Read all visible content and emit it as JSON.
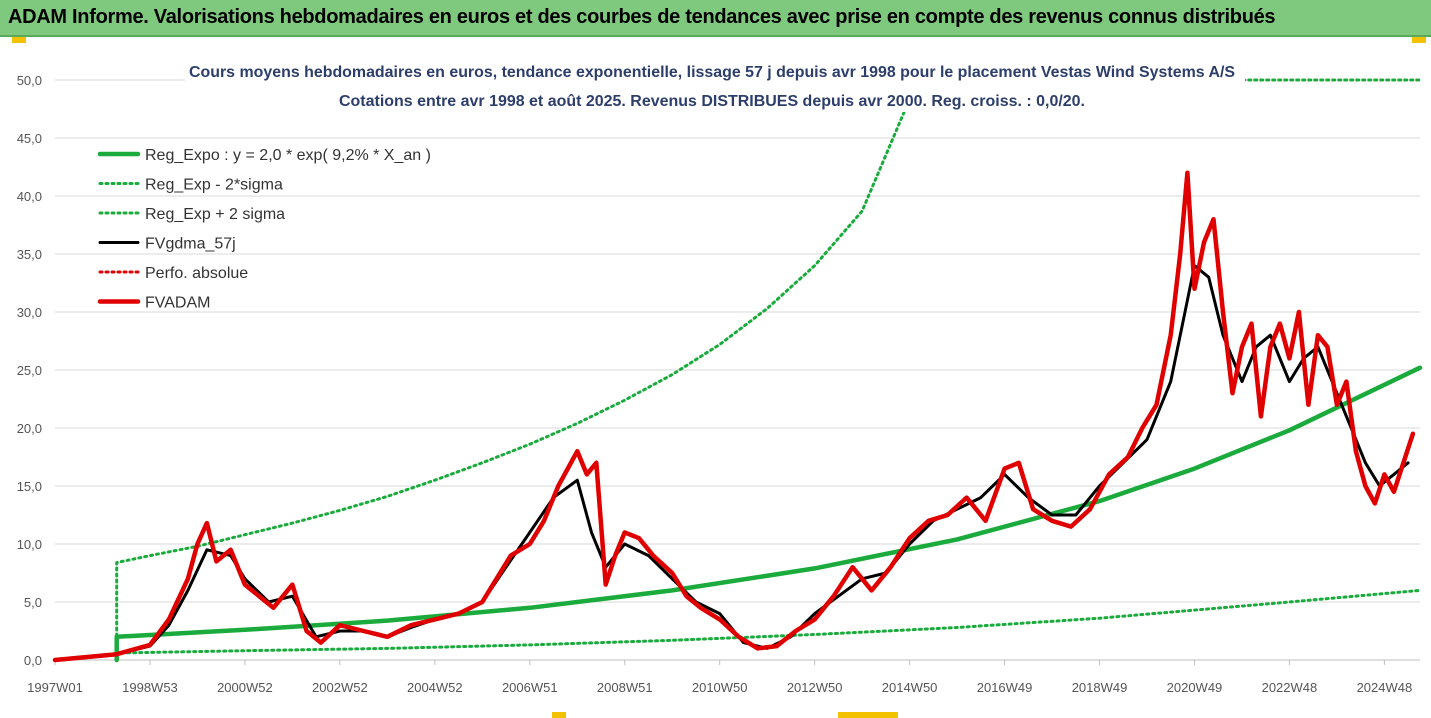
{
  "header": {
    "title": "ADAM Informe. Valorisations hebdomadaires en euros et des courbes de tendances avec prise en compte des revenus connus distribués"
  },
  "colors": {
    "banner": "#7fc97f",
    "green": "#1aab3c",
    "red": "#e00000",
    "black": "#000000"
  },
  "chart_data": {
    "type": "line",
    "title": "Cours moyens hebdomadaires en euros, tendance exponentielle, lissage 57 j depuis avr 1998 pour le placement Vestas Wind Systems A/S",
    "subtitle": "Cotations entre avr 1998 et août 2025. Revenus DISTRIBUES depuis avr 2000. Reg. croiss. : 0,0/20.",
    "x_tick_labels": [
      "1997W01",
      "1998W53",
      "2000W52",
      "2002W52",
      "2004W52",
      "2006W51",
      "2008W51",
      "2010W50",
      "2012W50",
      "2014W50",
      "2016W49",
      "2018W49",
      "2020W49",
      "2022W48",
      "2024W48"
    ],
    "x_tick_years": [
      1997.0,
      1999.0,
      2001.0,
      2003.0,
      2005.0,
      2007.0,
      2009.0,
      2011.0,
      2013.0,
      2015.0,
      2017.0,
      2019.0,
      2021.0,
      2023.0,
      2025.0
    ],
    "x_range": [
      1997.0,
      2025.75
    ],
    "y_tick_labels": [
      "0,0",
      "5,0",
      "10,0",
      "15,0",
      "20,0",
      "25,0",
      "30,0",
      "35,0",
      "40,0",
      "45,0",
      "50,0"
    ],
    "ylim": [
      0,
      50
    ],
    "grid": true,
    "legend": "top-left",
    "series": [
      {
        "name": "Reg_Expo : y = 2,0 * exp( 9,2% *  X_an )",
        "style": "thick-solid",
        "color": "#1aab3c",
        "x": [
          1998.3,
          2001,
          2004,
          2007,
          2010,
          2013,
          2016,
          2019,
          2021,
          2023,
          2025.75
        ],
        "y": [
          2.0,
          2.6,
          3.4,
          4.5,
          6.0,
          7.9,
          10.4,
          13.7,
          16.5,
          19.8,
          25.2
        ]
      },
      {
        "name": "Reg_Exp - 2*sigma",
        "style": "dotted",
        "color": "#1aab3c",
        "x": [
          1998.3,
          2001,
          2004,
          2007,
          2010,
          2013,
          2016,
          2019,
          2021,
          2023,
          2025.75
        ],
        "y": [
          0.6,
          0.8,
          1.0,
          1.3,
          1.7,
          2.2,
          2.8,
          3.6,
          4.3,
          5.0,
          6.0
        ]
      },
      {
        "name": "Reg_Exp + 2 sigma",
        "style": "dotted",
        "color": "#1aab3c",
        "x": [
          1998.3,
          1999,
          2000,
          2001,
          2002,
          2003,
          2004,
          2005,
          2006,
          2007,
          2008,
          2009,
          2010,
          2011,
          2012,
          2013,
          2014,
          2014.9
        ],
        "y": [
          8.4,
          9.0,
          9.8,
          10.8,
          11.8,
          12.9,
          14.1,
          15.5,
          17.0,
          18.6,
          20.4,
          22.4,
          24.6,
          27.2,
          30.3,
          34.0,
          38.7,
          47.4
        ],
        "upper_value": 50.0
      },
      {
        "name": "FVgdma_57j",
        "style": "solid",
        "color": "#000000",
        "x": [
          1997.0,
          1998.3,
          1999.0,
          1999.4,
          1999.8,
          2000.2,
          2000.7,
          2001.0,
          2001.5,
          2002.0,
          2002.5,
          2003.0,
          2003.5,
          2004.0,
          2004.5,
          2005.0,
          2005.5,
          2006.0,
          2006.5,
          2007.0,
          2007.5,
          2008.0,
          2008.3,
          2008.6,
          2009.0,
          2009.5,
          2010.0,
          2010.5,
          2011.0,
          2011.5,
          2012.0,
          2012.5,
          2013.0,
          2013.5,
          2014.0,
          2014.5,
          2015.0,
          2015.5,
          2016.0,
          2016.5,
          2017.0,
          2017.5,
          2018.0,
          2018.5,
          2019.0,
          2019.5,
          2020.0,
          2020.5,
          2020.8,
          2021.0,
          2021.3,
          2021.6,
          2022.0,
          2022.3,
          2022.6,
          2023.0,
          2023.3,
          2023.6,
          2024.0,
          2024.3,
          2024.6,
          2024.9,
          2025.2,
          2025.5
        ],
        "y": [
          0.0,
          0.5,
          1.2,
          3.0,
          6.0,
          9.5,
          9.0,
          7.0,
          5.0,
          5.5,
          2.0,
          2.5,
          2.5,
          2.0,
          2.8,
          3.5,
          4.0,
          5.0,
          8.0,
          11.0,
          14.0,
          15.5,
          11.0,
          8.0,
          10.0,
          9.0,
          7.0,
          5.0,
          4.0,
          1.5,
          1.0,
          2.0,
          4.0,
          5.5,
          7.0,
          7.5,
          10.0,
          12.0,
          13.0,
          14.0,
          16.0,
          14.0,
          12.5,
          12.5,
          15.0,
          17.0,
          19.0,
          24.0,
          30.0,
          34.0,
          33.0,
          28.0,
          24.0,
          27.0,
          28.0,
          24.0,
          26.0,
          27.0,
          23.0,
          20.0,
          17.0,
          15.0,
          16.0,
          17.0
        ]
      },
      {
        "name": "Perfo. absolue",
        "style": "dotted",
        "color": "#e00000",
        "x": [],
        "y": []
      },
      {
        "name": "FVADAM",
        "style": "thick-solid",
        "color": "#e00000",
        "x": [
          1997.0,
          1998.3,
          1999.0,
          1999.4,
          1999.8,
          2000.0,
          2000.2,
          2000.4,
          2000.7,
          2001.0,
          2001.3,
          2001.6,
          2002.0,
          2002.3,
          2002.6,
          2003.0,
          2003.5,
          2004.0,
          2004.5,
          2005.0,
          2005.5,
          2006.0,
          2006.3,
          2006.6,
          2007.0,
          2007.3,
          2007.6,
          2008.0,
          2008.2,
          2008.4,
          2008.6,
          2008.8,
          2009.0,
          2009.3,
          2009.6,
          2010.0,
          2010.3,
          2010.6,
          2011.0,
          2011.4,
          2011.8,
          2012.2,
          2012.6,
          2013.0,
          2013.4,
          2013.8,
          2014.2,
          2014.6,
          2015.0,
          2015.4,
          2015.8,
          2016.2,
          2016.6,
          2017.0,
          2017.3,
          2017.6,
          2018.0,
          2018.4,
          2018.8,
          2019.2,
          2019.6,
          2019.9,
          2020.2,
          2020.5,
          2020.7,
          2020.85,
          2021.0,
          2021.2,
          2021.4,
          2021.6,
          2021.8,
          2022.0,
          2022.2,
          2022.4,
          2022.6,
          2022.8,
          2023.0,
          2023.2,
          2023.4,
          2023.6,
          2023.8,
          2024.0,
          2024.2,
          2024.4,
          2024.6,
          2024.8,
          2025.0,
          2025.2,
          2025.4,
          2025.6
        ],
        "y": [
          0.0,
          0.5,
          1.3,
          3.5,
          7.0,
          10.0,
          11.8,
          8.5,
          9.5,
          6.5,
          5.5,
          4.5,
          6.5,
          2.5,
          1.5,
          3.0,
          2.5,
          2.0,
          3.0,
          3.5,
          4.0,
          5.0,
          7.0,
          9.0,
          10.0,
          12.0,
          15.0,
          18.0,
          16.0,
          17.0,
          6.5,
          9.0,
          11.0,
          10.5,
          9.0,
          7.5,
          5.5,
          4.5,
          3.5,
          2.0,
          1.0,
          1.2,
          2.5,
          3.5,
          5.5,
          8.0,
          6.0,
          8.0,
          10.5,
          12.0,
          12.5,
          14.0,
          12.0,
          16.5,
          17.0,
          13.0,
          12.0,
          11.5,
          13.0,
          16.0,
          17.5,
          20.0,
          22.0,
          28.0,
          35.0,
          42.0,
          32.0,
          36.0,
          38.0,
          30.0,
          23.0,
          27.0,
          29.0,
          21.0,
          27.0,
          29.0,
          26.0,
          30.0,
          22.0,
          28.0,
          27.0,
          22.0,
          24.0,
          18.0,
          15.0,
          13.5,
          16.0,
          14.5,
          17.0,
          19.5
        ]
      }
    ]
  }
}
